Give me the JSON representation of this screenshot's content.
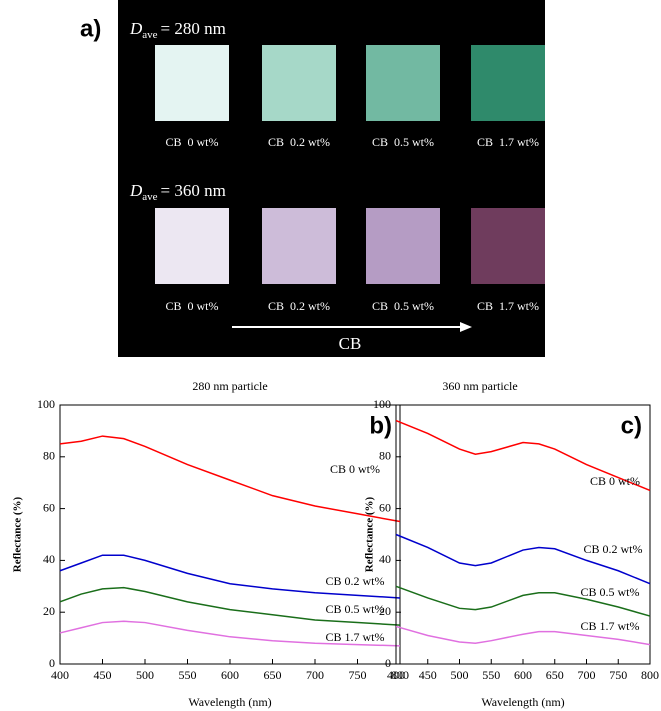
{
  "panel_a": {
    "label": "a)",
    "arrow_label": "CB",
    "groups": [
      {
        "symbol": "D",
        "subscript": "ave",
        "value": "= 280 nm",
        "colors": [
          "#e4f4f2",
          "#a6d8c8",
          "#72b9a2",
          "#2f8a6b"
        ],
        "samples": [
          "CB  0 wt%",
          "CB  0.2 wt%",
          "CB  0.5 wt%",
          "CB  1.7 wt%"
        ]
      },
      {
        "symbol": "D",
        "subscript": "ave",
        "value": "= 360 nm",
        "colors": [
          "#ece7f2",
          "#cdbcd9",
          "#b59cc4",
          "#6f3c5d"
        ],
        "samples": [
          "CB  0 wt%",
          "CB  0.2 wt%",
          "CB  0.5 wt%",
          "CB  1.7 wt%"
        ]
      }
    ]
  },
  "chart_data": [
    {
      "type": "line",
      "title": "280 nm particle",
      "panel_label": "b)",
      "xlabel": "Wavelength (nm)",
      "ylabel": "Reflectance (%)",
      "x": [
        400,
        425,
        450,
        475,
        500,
        550,
        600,
        650,
        700,
        750,
        800
      ],
      "series": [
        {
          "name": "CB 0 wt%",
          "color": "#ff0000",
          "values": [
            85,
            86,
            88,
            87,
            84,
            77,
            71,
            65,
            61,
            58,
            55
          ]
        },
        {
          "name": "CB 0.2 wt%",
          "color": "#0000cc",
          "values": [
            36,
            39,
            42,
            42,
            40,
            35,
            31,
            29,
            27.5,
            26.5,
            25.5
          ]
        },
        {
          "name": "CB 0.5 wt%",
          "color": "#1a6e1a",
          "values": [
            24,
            27,
            29,
            29.5,
            28,
            24,
            21,
            19,
            17,
            16,
            15
          ]
        },
        {
          "name": "CB 1.7 wt%",
          "color": "#e070e0",
          "values": [
            12,
            14,
            16,
            16.5,
            16,
            13,
            10.5,
            9,
            8,
            7.5,
            7
          ]
        }
      ],
      "xlim": [
        400,
        800
      ],
      "ylim": [
        0,
        100
      ],
      "xticks": [
        400,
        450,
        500,
        550,
        600,
        650,
        700,
        750,
        800
      ],
      "yticks": [
        0,
        20,
        40,
        60,
        80,
        100
      ]
    },
    {
      "type": "line",
      "title": "360 nm particle",
      "panel_label": "c)",
      "xlabel": "Wavelength (nm)",
      "ylabel": "Reflectance (%)",
      "x": [
        400,
        450,
        500,
        525,
        550,
        600,
        625,
        650,
        700,
        750,
        800
      ],
      "series": [
        {
          "name": "CB 0 wt%",
          "color": "#ff0000",
          "values": [
            94,
            89,
            83,
            81,
            82,
            85.5,
            85,
            83,
            77,
            72,
            67
          ]
        },
        {
          "name": "CB 0.2 wt%",
          "color": "#0000cc",
          "values": [
            50,
            45,
            39,
            38,
            39,
            44,
            45,
            44.5,
            40,
            36,
            31
          ]
        },
        {
          "name": "CB 0.5 wt%",
          "color": "#1a6e1a",
          "values": [
            30,
            25.5,
            21.5,
            21,
            22,
            26.5,
            27.5,
            27.5,
            25,
            22,
            18.5
          ]
        },
        {
          "name": "CB 1.7 wt%",
          "color": "#e070e0",
          "values": [
            14.5,
            11,
            8.5,
            8,
            9,
            11.5,
            12.5,
            12.5,
            11,
            9.5,
            7.5
          ]
        }
      ],
      "xlim": [
        400,
        800
      ],
      "ylim": [
        0,
        100
      ],
      "xticks": [
        400,
        450,
        500,
        550,
        600,
        650,
        700,
        750,
        800
      ],
      "yticks": [
        0,
        20,
        40,
        60,
        80,
        100
      ]
    }
  ]
}
